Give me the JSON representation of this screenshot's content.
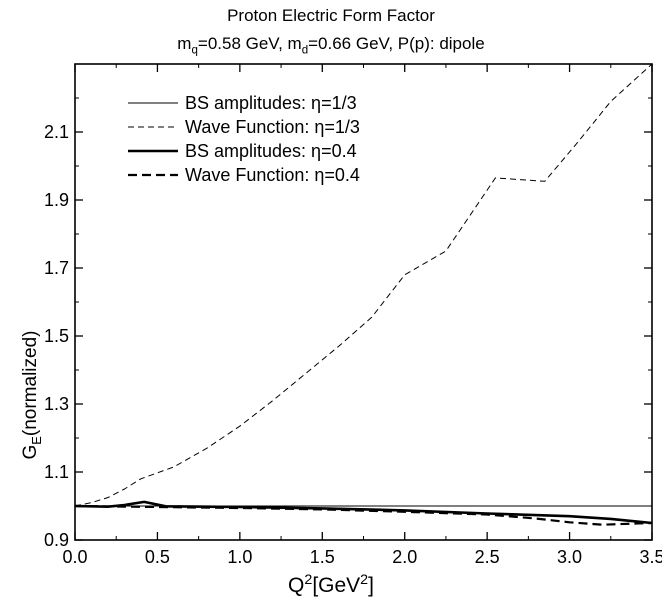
{
  "chart_data": {
    "type": "line",
    "title": "Proton Electric Form Factor",
    "subtitle": {
      "mq_sym": "m",
      "mq_sub": "q",
      "mq_val": "=0.58 GeV, ",
      "md_sym": "m",
      "md_sub": "d",
      "md_val": "=0.66 GeV, P(p): dipole"
    },
    "xlabel": {
      "main": "Q",
      "sup": "2",
      "unit_pre": "[GeV",
      "unit_sup": "2",
      "unit_post": "]"
    },
    "ylabel": {
      "main": "G",
      "sub": "E",
      "rest": "(normalized)"
    },
    "xlim": [
      0.0,
      3.5
    ],
    "ylim": [
      0.9,
      2.3
    ],
    "xticks": [
      0.0,
      0.5,
      1.0,
      1.5,
      2.0,
      2.5,
      3.0,
      3.5
    ],
    "xtick_labels": [
      "0.0",
      "0.5",
      "1.0",
      "1.5",
      "2.0",
      "2.5",
      "3.0",
      "3.5"
    ],
    "yticks": [
      0.9,
      1.1,
      1.3,
      1.5,
      1.7,
      1.9,
      2.1
    ],
    "ytick_labels": [
      "0.9",
      "1.1",
      "1.3",
      "1.5",
      "1.7",
      "1.9",
      "2.1"
    ],
    "legend_position": "top-left",
    "grid": false,
    "series": [
      {
        "name": "BS amplitudes: η=1/3",
        "style": "thin-solid",
        "x": [
          0.0,
          3.5
        ],
        "y": [
          1.0,
          1.0
        ]
      },
      {
        "name": "Wave Function: η=1/3",
        "style": "thin-dashed",
        "x": [
          0.0,
          0.1,
          0.2,
          0.3,
          0.4,
          0.6,
          0.8,
          1.0,
          1.2,
          1.4,
          1.6,
          1.8,
          2.0,
          2.25,
          2.55,
          2.85,
          3.05,
          3.25,
          3.5
        ],
        "y": [
          1.0,
          1.01,
          1.025,
          1.05,
          1.08,
          1.115,
          1.17,
          1.235,
          1.31,
          1.39,
          1.47,
          1.555,
          1.68,
          1.75,
          1.965,
          1.955,
          2.07,
          2.19,
          2.3
        ]
      },
      {
        "name": "BS amplitudes: η=0.4",
        "style": "thick-solid",
        "x": [
          0.0,
          0.2,
          0.3,
          0.42,
          0.55,
          0.8,
          1.0,
          1.5,
          2.0,
          2.5,
          3.0,
          3.25,
          3.5
        ],
        "y": [
          1.0,
          0.998,
          1.003,
          1.012,
          0.999,
          0.998,
          0.997,
          0.993,
          0.987,
          0.978,
          0.97,
          0.962,
          0.95
        ]
      },
      {
        "name": "Wave Function: η=0.4",
        "style": "thick-dashed",
        "x": [
          0.0,
          0.5,
          1.0,
          1.5,
          2.0,
          2.5,
          2.8,
          3.0,
          3.2,
          3.5
        ],
        "y": [
          1.0,
          0.997,
          0.994,
          0.99,
          0.983,
          0.975,
          0.963,
          0.952,
          0.945,
          0.95
        ]
      }
    ]
  }
}
